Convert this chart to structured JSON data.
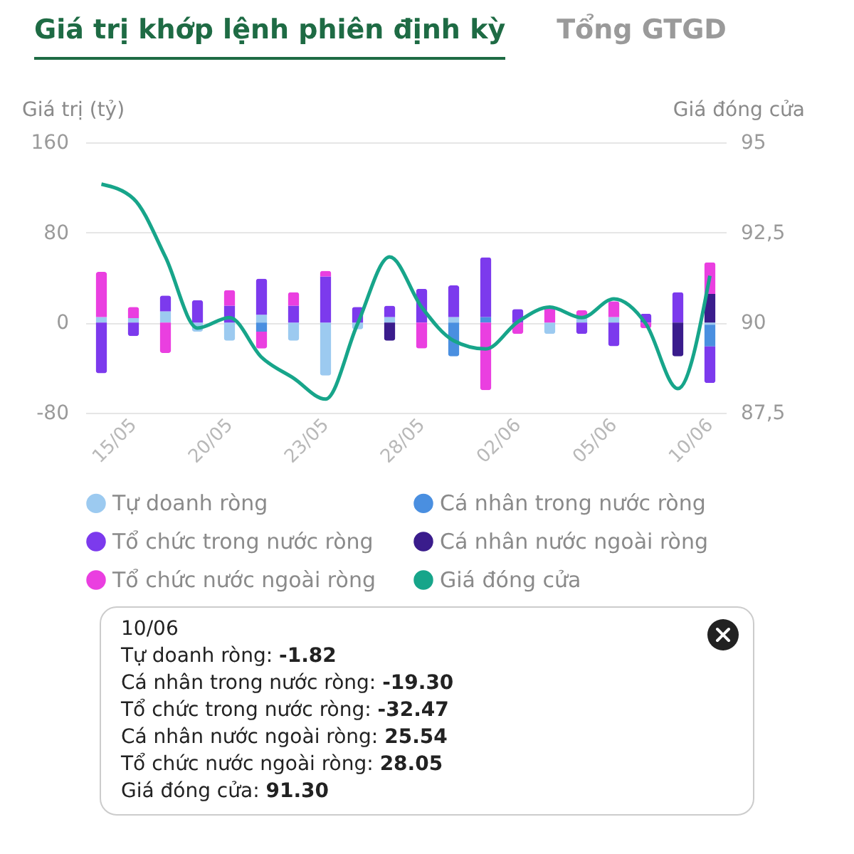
{
  "chart_data": {
    "type": "bar",
    "title": "Giá trị khớp lệnh phiên định kỳ",
    "subtitle": "Tổng GTGD",
    "ylabel": "Giá trị (tỷ)",
    "y2label": "Giá đóng cửa",
    "categories": [
      null,
      "15/05",
      null,
      null,
      "20/05",
      null,
      null,
      "23/05",
      null,
      null,
      "28/05",
      null,
      null,
      "02/06",
      null,
      null,
      "05/06",
      null,
      null,
      "10/06"
    ],
    "stacked": true,
    "series": [
      {
        "name": "Tự doanh ròng",
        "color": "#9ccaf0",
        "values": [
          5,
          4,
          10,
          -8,
          -16,
          7,
          -16,
          -47,
          -6,
          5,
          null,
          5,
          null,
          null,
          -10,
          5,
          5,
          null,
          null,
          -1.82
        ]
      },
      {
        "name": "Cá nhân trong nước ròng",
        "color": "#4a8fe0",
        "values": [
          null,
          null,
          null,
          null,
          null,
          -8,
          null,
          null,
          null,
          null,
          null,
          -30,
          5,
          null,
          null,
          null,
          null,
          null,
          null,
          -19.3
        ]
      },
      {
        "name": "Tổ chức trong nước ròng",
        "color": "#7c3aed",
        "values": [
          -45,
          -12,
          14,
          20,
          15,
          32,
          15,
          41,
          14,
          10,
          30,
          28,
          53,
          12,
          null,
          -10,
          -21,
          8,
          27,
          -32.47
        ]
      },
      {
        "name": "Cá nhân nước ngoài ròng",
        "color": "#3a1c8c",
        "values": [
          null,
          null,
          null,
          null,
          null,
          null,
          null,
          null,
          null,
          -16,
          null,
          null,
          null,
          null,
          null,
          null,
          null,
          null,
          -30,
          25.54
        ]
      },
      {
        "name": "Tổ chức nước ngoài ròng",
        "color": "#ea3fe0",
        "values": [
          40,
          10,
          -27,
          null,
          14,
          -15,
          12,
          5,
          null,
          null,
          -23,
          null,
          -60,
          -10,
          14,
          6,
          14,
          -5,
          null,
          28.05
        ]
      },
      {
        "name": "Giá đóng cửa",
        "type": "line",
        "axis": "y2",
        "color": "#17a58a",
        "values": [
          93.84,
          93.44,
          91.82,
          89.85,
          90.14,
          89.04,
          88.46,
          87.88,
          89.97,
          91.82,
          90.43,
          89.5,
          89.27,
          90.02,
          90.43,
          90.14,
          90.66,
          89.97,
          88.17,
          91.3
        ]
      }
    ],
    "ylim": [
      -80,
      160
    ],
    "yticks": [
      -80,
      0,
      80,
      160
    ],
    "y2lim": [
      87.5,
      95
    ],
    "y2ticks": [
      {
        "value": 87.5,
        "label": "87,5"
      },
      90,
      {
        "value": 92.5,
        "label": "92,5"
      },
      95
    ],
    "grid": "y",
    "legend": "bottom",
    "annotations": [
      "10/06",
      "Tự doanh ròng: -1.82",
      "Cá nhân trong nước ròng: -19.30",
      "Tổ chức trong nước ròng: -32.47",
      "Cá nhân nước ngoài ròng: 25.54",
      "Tổ chức nước ngoài ròng: 28.05",
      "Giá đóng cửa: 91.30"
    ]
  }
}
